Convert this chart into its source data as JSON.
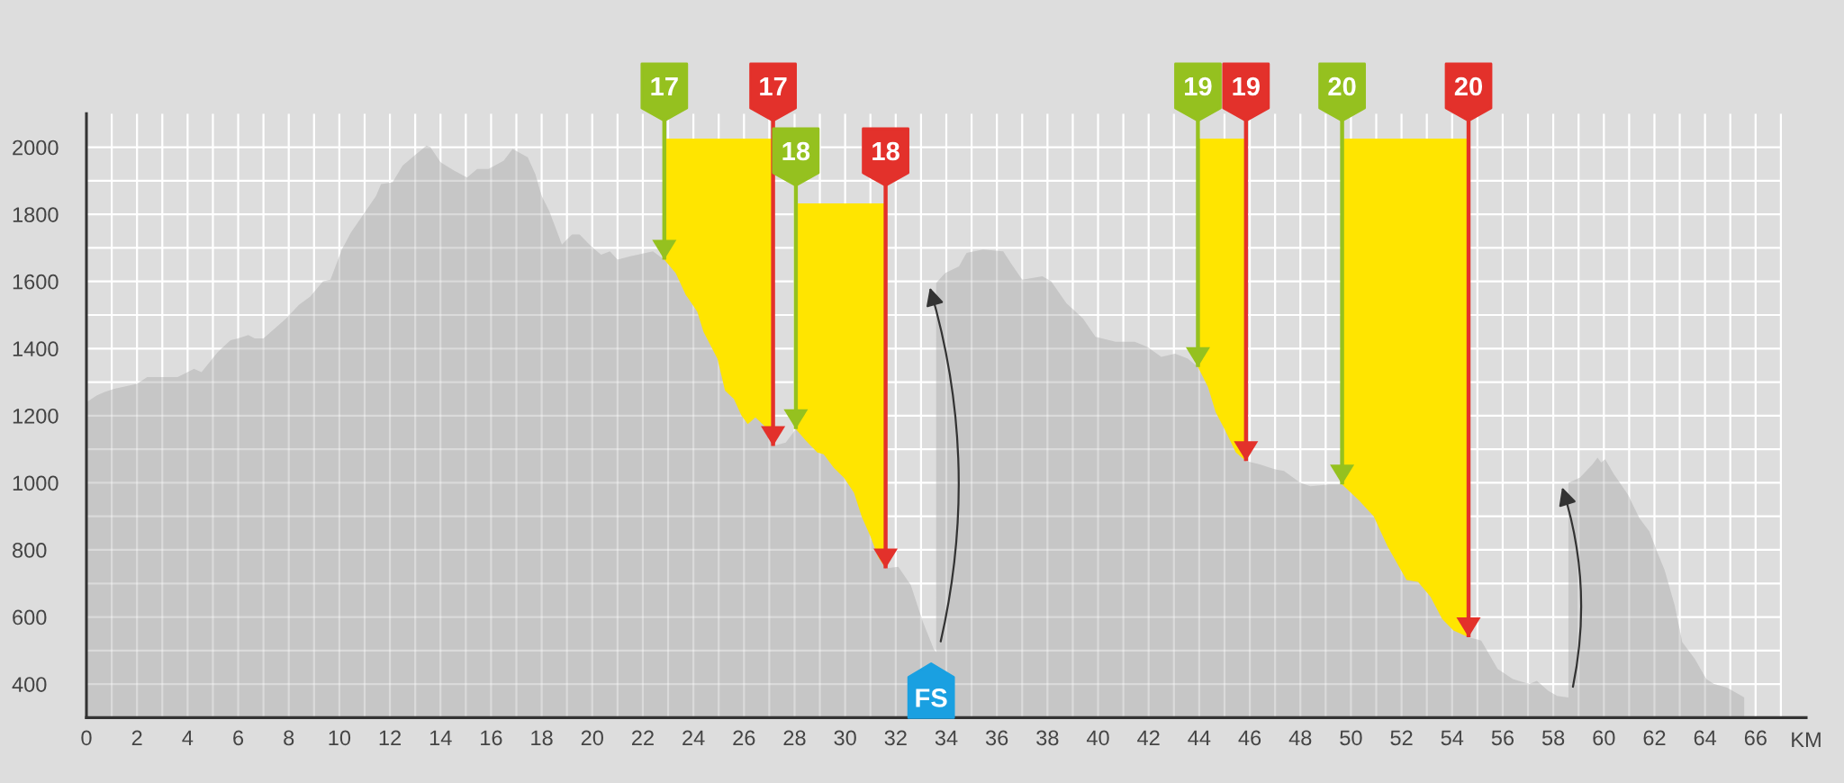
{
  "chart_data": {
    "type": "area",
    "xlabel": "KM",
    "color": "#c6c6c6",
    "x": [
      0,
      0.4,
      0.7,
      1.1,
      2.0,
      2.4,
      3.6,
      4.0,
      4.25,
      4.55,
      5.2,
      5.7,
      6.0,
      6.4,
      6.65,
      7.0,
      7.9,
      8.4,
      8.85,
      9.35,
      9.65,
      10.1,
      10.45,
      11.0,
      11.45,
      11.65,
      12.1,
      12.5,
      13.05,
      13.45,
      13.6,
      14.0,
      14.55,
      15.05,
      15.45,
      15.9,
      16.5,
      16.85,
      17.45,
      17.75,
      18.0,
      18.3,
      18.8,
      19.2,
      19.5,
      19.95,
      20.35,
      20.7,
      21.0,
      21.5,
      21.8,
      22.4,
      22.85,
      23.3,
      23.7,
      24.15,
      24.4,
      24.95,
      25.25,
      25.6,
      25.9,
      26.15,
      26.45,
      26.8,
      27.15,
      27.65,
      28.05,
      28.45,
      28.9,
      29.15,
      29.55,
      29.95,
      30.35,
      30.65,
      31.0,
      31.3,
      31.6,
      32.1,
      32.6,
      33.05,
      33.5,
      33.6,
      33.6,
      33.95,
      34.5,
      34.8,
      35.45,
      36.25,
      36.55,
      37.0,
      37.8,
      38.15,
      38.75,
      39.4,
      39.9,
      40.7,
      41.45,
      41.95,
      42.5,
      43.05,
      43.55,
      43.95,
      44.35,
      44.65,
      45.0,
      45.45,
      45.85,
      46.4,
      47.0,
      47.35,
      48.0,
      48.4,
      49.15,
      49.65,
      50.0,
      50.35,
      50.9,
      51.45,
      52.2,
      52.65,
      53.15,
      53.6,
      54.05,
      54.65,
      55.15,
      55.8,
      56.4,
      57.05,
      57.35,
      57.8,
      58.15,
      58.6,
      58.6,
      59.05,
      59.55,
      59.75,
      59.9,
      60.05,
      60.4,
      60.95,
      61.4,
      61.8,
      62.1,
      62.4,
      62.8,
      63.1,
      63.6,
      64.05,
      64.35,
      64.85,
      65.45,
      65.55
    ],
    "values": [
      1240,
      1260,
      1270,
      1280,
      1295,
      1315,
      1315,
      1330,
      1340,
      1330,
      1390,
      1425,
      1430,
      1440,
      1430,
      1430,
      1490,
      1530,
      1555,
      1600,
      1605,
      1695,
      1745,
      1805,
      1855,
      1890,
      1895,
      1945,
      1980,
      2005,
      2000,
      1955,
      1930,
      1910,
      1935,
      1935,
      1960,
      1995,
      1970,
      1920,
      1855,
      1810,
      1710,
      1740,
      1740,
      1705,
      1680,
      1690,
      1665,
      1675,
      1680,
      1690,
      1665,
      1625,
      1560,
      1510,
      1450,
      1370,
      1275,
      1250,
      1200,
      1175,
      1195,
      1170,
      1110,
      1120,
      1160,
      1125,
      1090,
      1085,
      1045,
      1015,
      970,
      900,
      840,
      780,
      745,
      750,
      695,
      590,
      505,
      495,
      1595,
      1625,
      1645,
      1685,
      1695,
      1690,
      1655,
      1605,
      1615,
      1600,
      1535,
      1490,
      1435,
      1420,
      1420,
      1405,
      1375,
      1385,
      1370,
      1345,
      1285,
      1210,
      1160,
      1090,
      1065,
      1055,
      1040,
      1035,
      1000,
      990,
      995,
      995,
      970,
      945,
      900,
      810,
      710,
      705,
      660,
      595,
      560,
      540,
      530,
      445,
      415,
      400,
      410,
      380,
      365,
      360,
      1000,
      1015,
      1055,
      1075,
      1060,
      1070,
      1025,
      965,
      895,
      855,
      795,
      740,
      635,
      525,
      475,
      415,
      400,
      390,
      365,
      360
    ],
    "xlim": [
      0,
      68
    ],
    "xticks": [
      0,
      2,
      4,
      6,
      8,
      10,
      12,
      14,
      16,
      18,
      20,
      22,
      24,
      26,
      28,
      30,
      32,
      34,
      36,
      38,
      40,
      42,
      44,
      46,
      48,
      50,
      52,
      54,
      56,
      58,
      60,
      62,
      64,
      66
    ],
    "ylim": [
      300,
      2100
    ],
    "yticks": [
      400,
      600,
      800,
      1000,
      1200,
      1400,
      1600,
      1800,
      2000
    ],
    "grid": true,
    "bands": [
      {
        "axis": "x",
        "from": 22.85,
        "to": 27.15,
        "color": "#ffe500"
      },
      {
        "axis": "x",
        "from": 28.05,
        "to": 31.6,
        "color": "#ffe500"
      },
      {
        "axis": "x",
        "from": 43.95,
        "to": 45.85,
        "color": "#ffe500"
      },
      {
        "axis": "x",
        "from": 49.65,
        "to": 54.65,
        "color": "#ffe500"
      }
    ],
    "annotations": [
      {
        "text": "17",
        "x": 22.85,
        "y": 1665
      },
      {
        "text": "17",
        "x": 27.15,
        "y": 1110
      },
      {
        "text": "18",
        "x": 28.05,
        "y": 1160
      },
      {
        "text": "18",
        "x": 31.6,
        "y": 745
      },
      {
        "text": "FS",
        "x": 33.4,
        "y": 300
      },
      {
        "text": "19",
        "x": 43.95,
        "y": 1345
      },
      {
        "text": "19",
        "x": 45.85,
        "y": 1065
      },
      {
        "text": "20",
        "x": 49.65,
        "y": 995
      },
      {
        "text": "20",
        "x": 54.65,
        "y": 540
      }
    ]
  }
}
